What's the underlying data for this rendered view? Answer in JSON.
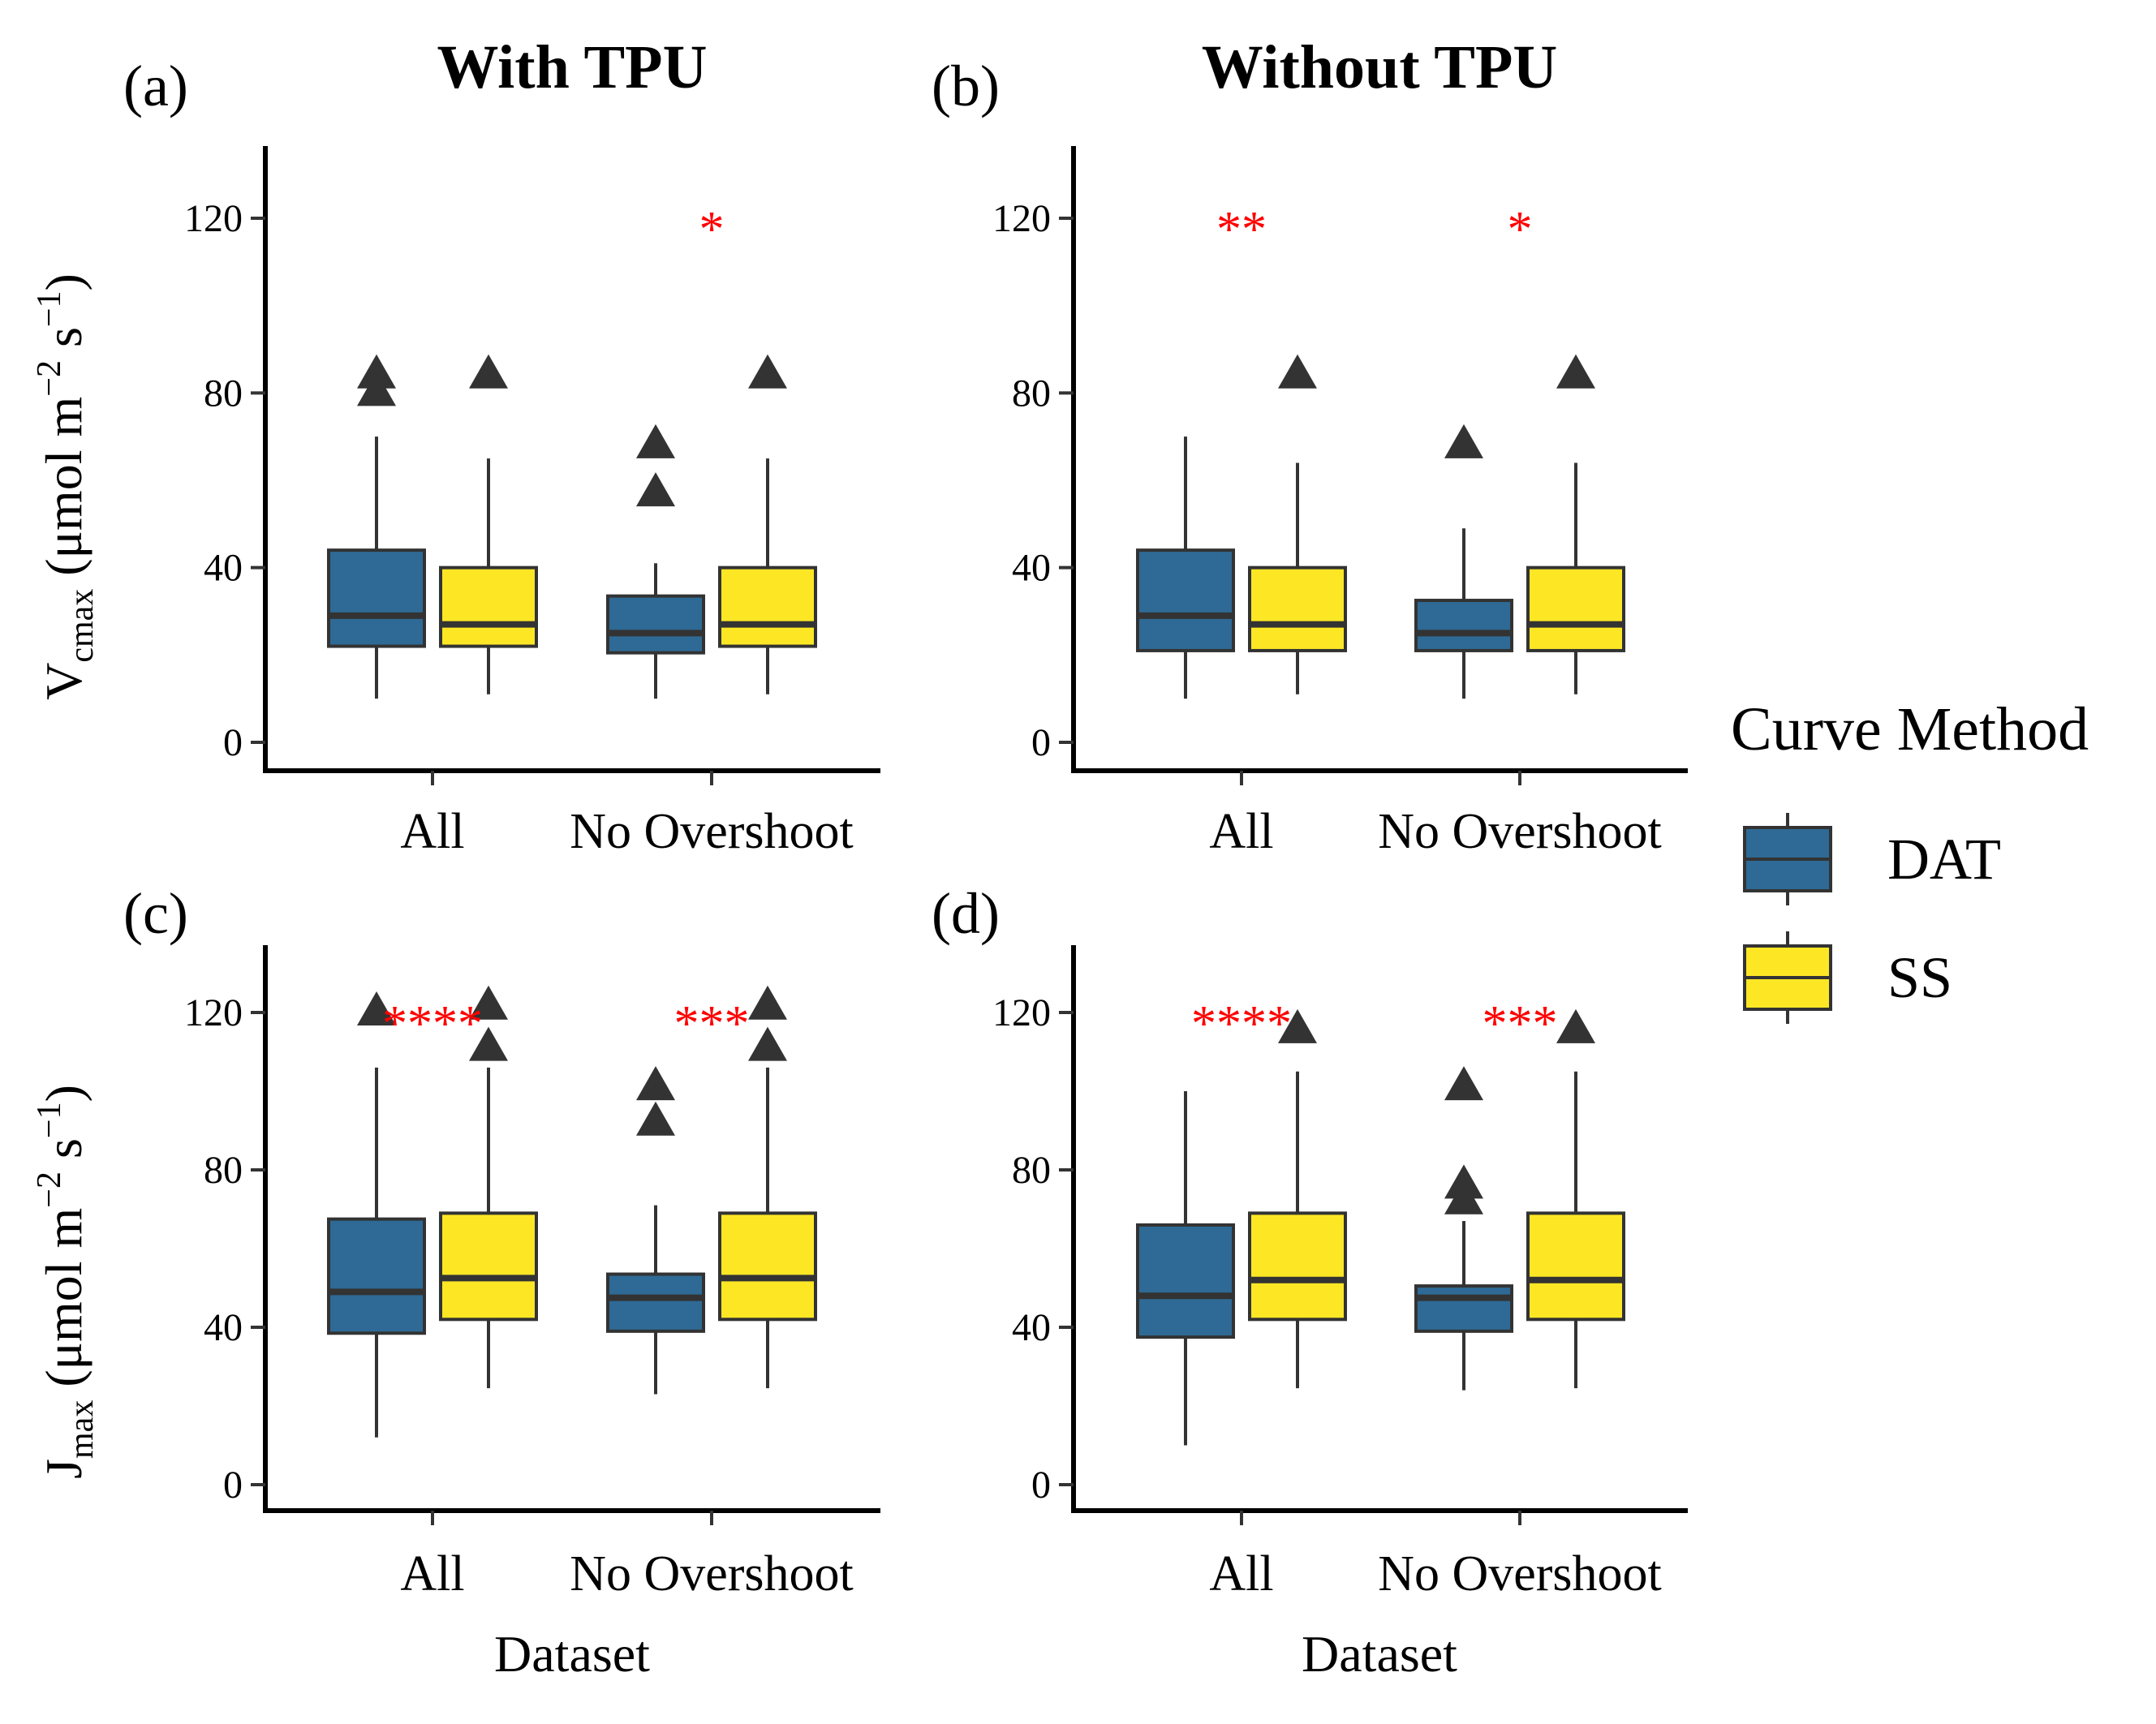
{
  "titles": {
    "left": "With TPU",
    "right": "Without TPU"
  },
  "y_labels": {
    "top": {
      "main": "V",
      "sub": "cmax",
      "rest": " (μmol m",
      "exp1": "−2",
      "mid": " s",
      "exp2": "−1",
      "close": ")"
    },
    "bottom": {
      "main": "J",
      "sub": "max",
      "rest": " (μmol m",
      "exp1": "−2",
      "mid": " s",
      "exp2": "−1",
      "close": ")"
    }
  },
  "x_label": "Dataset",
  "legend": {
    "title": "Curve Method",
    "items": [
      {
        "label": "DAT",
        "color": "#2E6A95"
      },
      {
        "label": "SS",
        "color": "#FDE725"
      }
    ]
  },
  "colors": {
    "DAT": "#2E6A95",
    "SS": "#FDE725",
    "significance": "#FF0000",
    "outline": "#333333"
  },
  "chart_data": [
    {
      "type": "box",
      "panel": "(a)",
      "row": 0,
      "col": 0,
      "categories": [
        "All",
        "No Overshoot"
      ],
      "ylim": [
        -5,
        137
      ],
      "yticks": [
        0,
        40,
        80,
        120
      ],
      "series": [
        {
          "name": "DAT",
          "boxes": [
            {
              "min": 10,
              "q1": 22,
              "median": 29,
              "q3": 44,
              "max": 70,
              "outliers": [
                80,
                84
              ]
            },
            {
              "min": 10,
              "q1": 20.5,
              "median": 25,
              "q3": 33.5,
              "max": 41,
              "outliers": [
                57,
                68
              ]
            }
          ]
        },
        {
          "name": "SS",
          "boxes": [
            {
              "min": 11,
              "q1": 22,
              "median": 27,
              "q3": 40,
              "max": 65,
              "outliers": [
                84
              ]
            },
            {
              "min": 11,
              "q1": 22,
              "median": 27,
              "q3": 40,
              "max": 65,
              "outliers": [
                84
              ]
            }
          ]
        }
      ],
      "significance": [
        "",
        "*"
      ]
    },
    {
      "type": "box",
      "panel": "(b)",
      "row": 0,
      "col": 1,
      "categories": [
        "All",
        "No Overshoot"
      ],
      "ylim": [
        -5,
        137
      ],
      "yticks": [
        0,
        40,
        80,
        120
      ],
      "series": [
        {
          "name": "DAT",
          "boxes": [
            {
              "min": 10,
              "q1": 21,
              "median": 29,
              "q3": 44,
              "max": 70,
              "outliers": []
            },
            {
              "min": 10,
              "q1": 21,
              "median": 25,
              "q3": 32.5,
              "max": 49,
              "outliers": [
                68
              ]
            }
          ]
        },
        {
          "name": "SS",
          "boxes": [
            {
              "min": 11,
              "q1": 21,
              "median": 27,
              "q3": 40,
              "max": 64,
              "outliers": [
                84
              ]
            },
            {
              "min": 11,
              "q1": 21,
              "median": 27,
              "q3": 40,
              "max": 64,
              "outliers": [
                84
              ]
            }
          ]
        }
      ],
      "significance": [
        "**",
        "*"
      ]
    },
    {
      "type": "box",
      "panel": "(c)",
      "row": 1,
      "col": 0,
      "categories": [
        "All",
        "No Overshoot"
      ],
      "ylim": [
        -5,
        137
      ],
      "yticks": [
        0,
        40,
        80,
        120
      ],
      "series": [
        {
          "name": "DAT",
          "boxes": [
            {
              "min": 12,
              "q1": 38.5,
              "median": 49,
              "q3": 67.5,
              "max": 106,
              "outliers": [
                120
              ]
            },
            {
              "min": 23,
              "q1": 39,
              "median": 47.5,
              "q3": 53.5,
              "max": 71,
              "outliers": [
                92,
                101
              ]
            }
          ]
        },
        {
          "name": "SS",
          "boxes": [
            {
              "min": 24.5,
              "q1": 42,
              "median": 52.5,
              "q3": 69,
              "max": 106,
              "outliers": [
                111,
                121.5
              ]
            },
            {
              "min": 24.5,
              "q1": 42,
              "median": 52.5,
              "q3": 69,
              "max": 106,
              "outliers": [
                111,
                121.5
              ]
            }
          ]
        }
      ],
      "significance": [
        "****",
        "***"
      ]
    },
    {
      "type": "box",
      "panel": "(d)",
      "row": 1,
      "col": 1,
      "categories": [
        "All",
        "No Overshoot"
      ],
      "ylim": [
        -5,
        137
      ],
      "yticks": [
        0,
        40,
        80,
        120
      ],
      "series": [
        {
          "name": "DAT",
          "boxes": [
            {
              "min": 10,
              "q1": 37.5,
              "median": 48,
              "q3": 66,
              "max": 100,
              "outliers": []
            },
            {
              "min": 24,
              "q1": 39,
              "median": 47.5,
              "q3": 50.5,
              "max": 67,
              "outliers": [
                72,
                76,
                101
              ]
            }
          ]
        },
        {
          "name": "SS",
          "boxes": [
            {
              "min": 24.5,
              "q1": 42,
              "median": 52,
              "q3": 69,
              "max": 105,
              "outliers": [
                115.5
              ]
            },
            {
              "min": 24.5,
              "q1": 42,
              "median": 52,
              "q3": 69,
              "max": 105,
              "outliers": [
                115.5
              ]
            }
          ]
        }
      ],
      "significance": [
        "****",
        "***"
      ]
    }
  ]
}
